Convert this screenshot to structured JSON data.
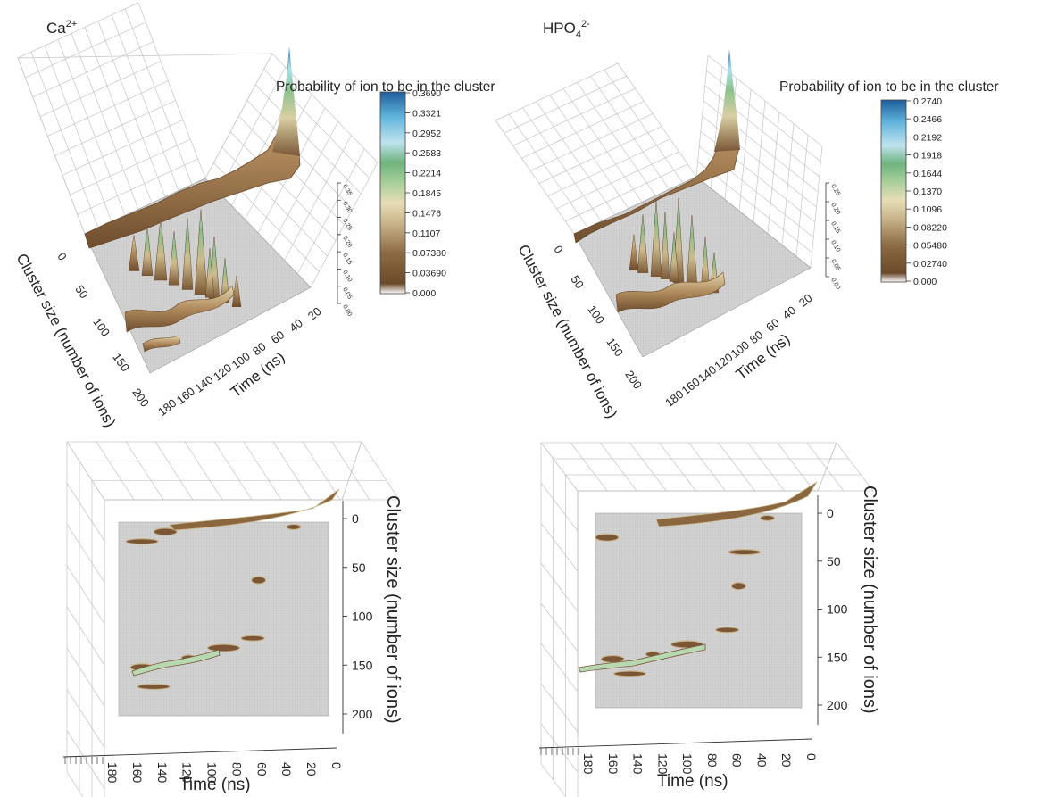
{
  "chart_data": [
    {
      "type": "surface3d",
      "panel_title_html": "Ca<sup>2+</sup>",
      "panel_title_base": "Ca",
      "panel_title_sup": "2+",
      "colorbar_title": "Probability of ion to be in the cluster",
      "colorbar_ticks": [
        "0.3690",
        "0.3321",
        "0.2952",
        "0.2583",
        "0.2214",
        "0.1845",
        "0.1476",
        "0.1107",
        "0.07380",
        "0.03690",
        "0.000"
      ],
      "colorbar_range": [
        0,
        0.369
      ],
      "xlabel": "Time (ns)",
      "ylabel": "Cluster size (number of ions)",
      "x_ticks": [
        "20",
        "40",
        "60",
        "80",
        "100",
        "120",
        "140",
        "160",
        "180"
      ],
      "y_ticks": [
        "0",
        "50",
        "100",
        "150",
        "200"
      ],
      "z_ticks": [
        "0.00",
        "0.05",
        "0.10",
        "0.15",
        "0.20",
        "0.25",
        "0.30",
        "0.35"
      ],
      "view": "3d-oblique",
      "peaks": [
        {
          "time": 0,
          "cluster_size": 0,
          "value": 0.369
        },
        {
          "time": 10,
          "cluster_size": 5,
          "value": 0.2
        },
        {
          "time": 40,
          "cluster_size": 10,
          "value": 0.1
        },
        {
          "time": 70,
          "cluster_size": 110,
          "value": 0.15
        },
        {
          "time": 90,
          "cluster_size": 125,
          "value": 0.17
        },
        {
          "time": 110,
          "cluster_size": 140,
          "value": 0.16
        },
        {
          "time": 150,
          "cluster_size": 155,
          "value": 0.12
        },
        {
          "time": 170,
          "cluster_size": 160,
          "value": 0.08
        }
      ]
    },
    {
      "type": "surface3d",
      "panel_title_base": "HPO",
      "panel_title_sub": "4",
      "panel_title_sup": "2-",
      "colorbar_title": "Probability of ion to be in the cluster",
      "colorbar_ticks": [
        "0.2740",
        "0.2466",
        "0.2192",
        "0.1918",
        "0.1644",
        "0.1370",
        "0.1096",
        "0.08220",
        "0.05480",
        "0.02740",
        "0.000"
      ],
      "colorbar_range": [
        0,
        0.274
      ],
      "xlabel": "Time (ns)",
      "ylabel": "Cluster size (number of ions)",
      "x_ticks": [
        "20",
        "40",
        "60",
        "80",
        "100",
        "120",
        "140",
        "160",
        "180"
      ],
      "y_ticks": [
        "0",
        "50",
        "100",
        "150",
        "200"
      ],
      "z_ticks": [
        "0.00",
        "0.05",
        "0.10",
        "0.15",
        "0.20",
        "0.25"
      ],
      "view": "3d-oblique"
    },
    {
      "type": "surface3d-topview",
      "xlabel": "Time (ns)",
      "ylabel": "Cluster size (number of ions)",
      "x_ticks": [
        "180",
        "160",
        "140",
        "120",
        "100",
        "80",
        "60",
        "40",
        "20",
        "0"
      ],
      "y_ticks": [
        "0",
        "50",
        "100",
        "150",
        "200"
      ],
      "view": "top",
      "blobs": [
        {
          "time": 30,
          "cluster_size": 5
        },
        {
          "time": 140,
          "cluster_size": 10
        },
        {
          "time": 160,
          "cluster_size": 20
        },
        {
          "time": 60,
          "cluster_size": 60
        },
        {
          "time": 65,
          "cluster_size": 120
        },
        {
          "time": 90,
          "cluster_size": 130
        },
        {
          "time": 120,
          "cluster_size": 140
        },
        {
          "time": 160,
          "cluster_size": 150
        },
        {
          "time": 150,
          "cluster_size": 170
        }
      ]
    },
    {
      "type": "surface3d-topview",
      "xlabel": "Time (ns)",
      "ylabel": "Cluster size (number of ions)",
      "x_ticks": [
        "180",
        "160",
        "140",
        "120",
        "100",
        "80",
        "60",
        "40",
        "20",
        "0"
      ],
      "y_ticks": [
        "0",
        "50",
        "100",
        "150",
        "200"
      ],
      "view": "top",
      "blobs": [
        {
          "time": 30,
          "cluster_size": 5
        },
        {
          "time": 170,
          "cluster_size": 25
        },
        {
          "time": 50,
          "cluster_size": 40
        },
        {
          "time": 55,
          "cluster_size": 75
        },
        {
          "time": 65,
          "cluster_size": 120
        },
        {
          "time": 100,
          "cluster_size": 135
        },
        {
          "time": 130,
          "cluster_size": 145
        },
        {
          "time": 165,
          "cluster_size": 150
        },
        {
          "time": 150,
          "cluster_size": 165
        }
      ]
    }
  ]
}
